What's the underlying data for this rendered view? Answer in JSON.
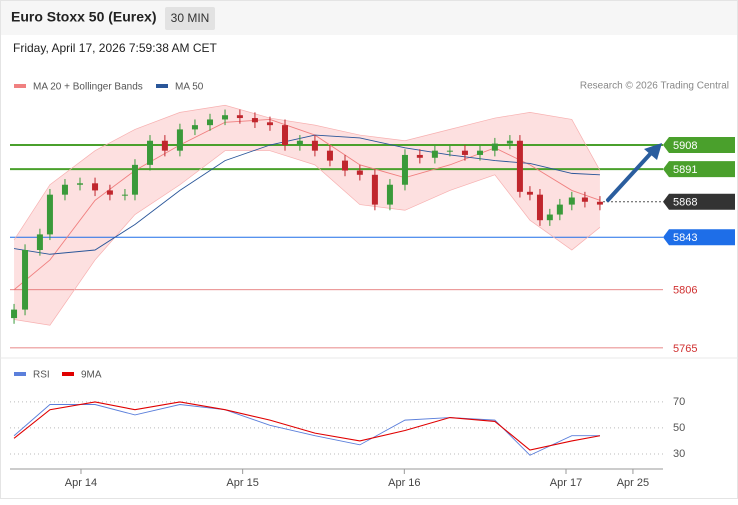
{
  "header": {
    "title": "Euro Stoxx 50 (Eurex)",
    "interval": "30 MIN",
    "timestamp": "Friday, April 17, 2026 7:59:38 AM CET",
    "credit": "Research © 2026 Trading Central"
  },
  "chart_data": [
    {
      "type": "candlestick",
      "xlim": [
        -0.439,
        3.6
      ],
      "ylim": [
        5760,
        5940
      ],
      "x": [
        -0.414,
        -0.346,
        -0.254,
        -0.192,
        -0.099,
        -0.006,
        0.087,
        0.179,
        0.272,
        0.334,
        0.427,
        0.519,
        0.612,
        0.705,
        0.798,
        0.891,
        0.983,
        1.076,
        1.169,
        1.262,
        1.354,
        1.447,
        1.54,
        1.633,
        1.725,
        1.818,
        1.911,
        2.004,
        2.096,
        2.189,
        2.282,
        2.375,
        2.468,
        2.56,
        2.653,
        2.715,
        2.777,
        2.839,
        2.9,
        2.962,
        3.036,
        3.117,
        3.21
      ],
      "open": [
        5786,
        5792,
        5834,
        5845,
        5873,
        5880,
        5881,
        5876,
        5873,
        5873,
        5894,
        5911,
        5904,
        5919,
        5922,
        5926,
        5929,
        5927,
        5924,
        5922,
        5908,
        5911,
        5904,
        5897,
        5890,
        5887,
        5866,
        5880,
        5901,
        5899,
        5904,
        5904,
        5901,
        5904,
        5909,
        5911,
        5875,
        5873,
        5855,
        5859,
        5866,
        5871,
        5868
      ],
      "high": [
        5796,
        5838,
        5849,
        5877,
        5884,
        5885,
        5885,
        5880,
        5877,
        5898,
        5915,
        5915,
        5923,
        5926,
        5930,
        5933,
        5933,
        5931,
        5928,
        5926,
        5915,
        5915,
        5908,
        5901,
        5894,
        5891,
        5884,
        5905,
        5905,
        5908,
        5908,
        5908,
        5908,
        5913,
        5915,
        5915,
        5879,
        5877,
        5863,
        5870,
        5875,
        5875,
        5872
      ],
      "low": [
        5782,
        5788,
        5830,
        5841,
        5869,
        5876,
        5872,
        5869,
        5869,
        5869,
        5890,
        5900,
        5900,
        5915,
        5918,
        5922,
        5923,
        5920,
        5918,
        5904,
        5904,
        5900,
        5893,
        5886,
        5883,
        5862,
        5862,
        5876,
        5895,
        5895,
        5900,
        5897,
        5897,
        5900,
        5905,
        5871,
        5869,
        5851,
        5851,
        5855,
        5862,
        5864,
        5862
      ],
      "close": [
        5792,
        5834,
        5845,
        5873,
        5880,
        5881,
        5876,
        5873,
        5873,
        5894,
        5911,
        5904,
        5919,
        5922,
        5926,
        5929,
        5927,
        5924,
        5922,
        5908,
        5911,
        5904,
        5897,
        5890,
        5887,
        5866,
        5880,
        5901,
        5899,
        5904,
        5904,
        5901,
        5904,
        5909,
        5911,
        5875,
        5873,
        5855,
        5859,
        5866,
        5871,
        5868,
        5866
      ],
      "up_color": "#3a9a3a",
      "down_color": "#c0262d",
      "lines": {
        "x": [
          -0.414,
          -0.192,
          0.087,
          0.334,
          0.612,
          0.891,
          1.169,
          1.447,
          1.725,
          2.004,
          2.282,
          2.56,
          2.777,
          3.036,
          3.21
        ],
        "series": [
          {
            "name": "MA 20 + Bollinger Bands",
            "color": "#f08080",
            "values": [
              5806,
              5827,
              5869,
              5890,
              5908,
              5924,
              5926,
              5915,
              5894,
              5885,
              5894,
              5906,
              5894,
              5876,
              5869
            ]
          },
          {
            "name": "MA 50",
            "color": "#2a5699",
            "values": [
              5835,
              5831,
              5834,
              5852,
              5876,
              5897,
              5908,
              5915,
              5913,
              5906,
              5901,
              5897,
              5895,
              5888,
              5887
            ]
          }
        ],
        "band_upper": [
          5841,
          5880,
          5904,
          5919,
          5931,
          5936,
          5927,
          5922,
          5915,
          5911,
          5919,
          5927,
          5931,
          5926,
          5890
        ],
        "band_lower": [
          5785,
          5781,
          5827,
          5859,
          5880,
          5904,
          5904,
          5894,
          5866,
          5862,
          5876,
          5887,
          5855,
          5834,
          5850
        ],
        "band_color": "#fde0e0"
      },
      "levels": [
        {
          "value": 5908,
          "color": "#4aa02c"
        },
        {
          "value": 5891,
          "color": "#4aa02c"
        },
        {
          "value": 5868,
          "color": "#333333"
        },
        {
          "value": 5843,
          "color": "#1e6ee8"
        },
        {
          "value": 5806,
          "color": "#e06060"
        },
        {
          "value": 5765,
          "color": "#e06060"
        }
      ]
    },
    {
      "type": "line",
      "xlim": [
        -0.439,
        3.6
      ],
      "ylim": [
        21.5,
        83
      ],
      "yticks": [
        70,
        50,
        30
      ],
      "xticks": [
        {
          "value": 0,
          "label": "Apr 14"
        },
        {
          "value": 1,
          "label": "Apr 15"
        },
        {
          "value": 2,
          "label": "Apr 16"
        },
        {
          "value": 3,
          "label": "Apr 17"
        },
        {
          "value": 3.414,
          "label": "Apr 25"
        }
      ],
      "x": [
        -0.414,
        -0.192,
        0.087,
        0.334,
        0.612,
        0.891,
        1.169,
        1.447,
        1.725,
        2.004,
        2.282,
        2.56,
        2.777,
        3.036,
        3.21
      ],
      "series": [
        {
          "name": "RSI",
          "color": "#5b7fdb",
          "values": [
            44,
            68,
            68,
            60,
            68,
            64,
            52,
            44,
            37,
            56,
            58,
            56,
            29,
            44,
            44
          ]
        },
        {
          "name": "9MA",
          "color": "#e00000",
          "values": [
            42,
            64,
            70,
            64,
            70,
            64,
            56,
            46,
            40,
            48,
            58,
            55,
            33,
            40,
            44
          ]
        }
      ]
    }
  ]
}
